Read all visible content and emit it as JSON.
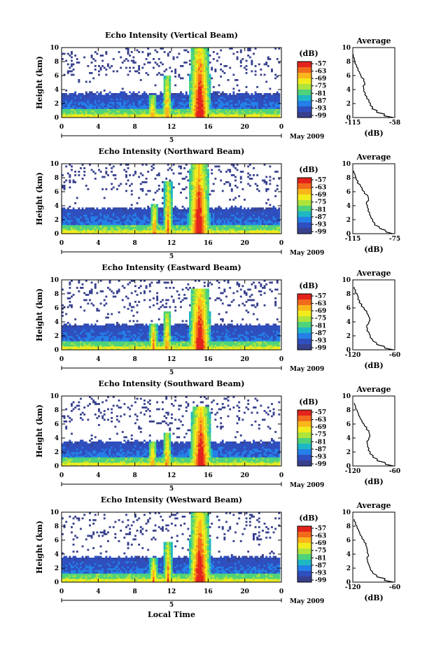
{
  "colorbar": {
    "unit": "(dB)",
    "labels": [
      "-57",
      "-63",
      "-69",
      "-75",
      "-81",
      "-87",
      "-93",
      "-99"
    ],
    "colors": [
      "#e3231c",
      "#f26a1c",
      "#fbb61b",
      "#f2ec1d",
      "#aee43c",
      "#4ed37b",
      "#1fb7c4",
      "#2480e8",
      "#2f4fbe",
      "#38418e"
    ]
  },
  "chart_data": [
    {
      "type": "heatmap",
      "title": "Echo Intensity (Vertical Beam)",
      "ylabel": "Height (km)",
      "yticks": [
        "0",
        "2",
        "4",
        "6",
        "8",
        "10"
      ],
      "xticks": [
        "0",
        "4",
        "8",
        "12",
        "16",
        "20",
        "0"
      ],
      "date_label": "5",
      "month_label": "May 2009",
      "xlim": [
        0,
        24
      ],
      "ylim": [
        0,
        10
      ],
      "echo_top_km": 3.5,
      "convective_cells": [
        {
          "center_h": 10,
          "peak_height_km": 3.2
        },
        {
          "center_h": 11.6,
          "peak_height_km": 6.0
        },
        {
          "center_h": 15.2,
          "peak_height_km": 10.0
        }
      ],
      "profile": {
        "title": "Average",
        "xlabel": "(dB)",
        "xtick_labels": [
          "-115",
          "-58"
        ],
        "xlim": [
          -115,
          -58
        ],
        "yticks": [
          "0",
          "2",
          "4",
          "6",
          "8",
          "10"
        ],
        "height_km": [
          0,
          0.5,
          1,
          1.5,
          2,
          2.5,
          3,
          3.5,
          4,
          4.5,
          5,
          5.5,
          6,
          6.5,
          7,
          7.5,
          8,
          8.5,
          9
        ],
        "value_db": [
          -60,
          -72,
          -82,
          -88,
          -91,
          -93,
          -96,
          -98,
          -100,
          -101,
          -99,
          -100,
          -104,
          -106,
          -108,
          -110,
          -112,
          -113,
          -114
        ]
      }
    },
    {
      "type": "heatmap",
      "title": "Echo Intensity (Northward Beam)",
      "ylabel": "Height (km)",
      "yticks": [
        "0",
        "2",
        "4",
        "6",
        "8",
        "10"
      ],
      "xticks": [
        "0",
        "4",
        "8",
        "12",
        "16",
        "20",
        "0"
      ],
      "date_label": "5",
      "month_label": "May 2009",
      "xlim": [
        0,
        24
      ],
      "ylim": [
        0,
        10
      ],
      "echo_top_km": 3.7,
      "convective_cells": [
        {
          "center_h": 10.2,
          "peak_height_km": 4.2
        },
        {
          "center_h": 11.7,
          "peak_height_km": 7.5
        },
        {
          "center_h": 15.1,
          "peak_height_km": 10.0
        }
      ],
      "profile": {
        "title": "Average",
        "xlabel": "(dB)",
        "xtick_labels": [
          "-115",
          "-75"
        ],
        "xlim": [
          -115,
          -75
        ],
        "yticks": [
          "0",
          "2",
          "4",
          "6",
          "8",
          "10"
        ],
        "height_km": [
          0,
          0.5,
          1,
          1.5,
          2,
          2.5,
          3,
          3.5,
          4,
          4.5,
          5,
          5.5,
          6,
          6.5,
          7,
          7.5,
          8,
          8.5,
          9
        ],
        "value_db": [
          -77,
          -84,
          -90,
          -94,
          -96,
          -98,
          -99,
          -100,
          -101,
          -102,
          -100,
          -101,
          -104,
          -106,
          -108,
          -110,
          -112,
          -113,
          -114
        ]
      }
    },
    {
      "type": "heatmap",
      "title": "Echo Intensity (Eastward Beam)",
      "ylabel": "Height (km)",
      "yticks": [
        "0",
        "2",
        "4",
        "6",
        "8",
        "10"
      ],
      "xticks": [
        "0",
        "4",
        "8",
        "12",
        "16",
        "20",
        "0"
      ],
      "date_label": "5",
      "month_label": "May 2009",
      "xlim": [
        0,
        24
      ],
      "ylim": [
        0,
        10
      ],
      "echo_top_km": 3.6,
      "convective_cells": [
        {
          "center_h": 10.1,
          "peak_height_km": 3.8
        },
        {
          "center_h": 11.6,
          "peak_height_km": 5.5
        },
        {
          "center_h": 15.2,
          "peak_height_km": 8.8
        }
      ],
      "profile": {
        "title": "Average",
        "xlabel": "(dB)",
        "xtick_labels": [
          "-120",
          "-60"
        ],
        "xlim": [
          -120,
          -60
        ],
        "yticks": [
          "0",
          "2",
          "4",
          "6",
          "8",
          "10"
        ],
        "height_km": [
          0,
          0.5,
          1,
          1.5,
          2,
          2.5,
          3,
          3.5,
          4,
          4.5,
          5,
          5.5,
          6,
          6.5,
          7,
          7.5,
          8,
          8.5,
          9
        ],
        "value_db": [
          -62,
          -75,
          -86,
          -92,
          -95,
          -97,
          -99,
          -100,
          -97,
          -96,
          -98,
          -100,
          -104,
          -107,
          -110,
          -112,
          -114,
          -116,
          -118
        ]
      }
    },
    {
      "type": "heatmap",
      "title": "Echo Intensity (Southward Beam)",
      "ylabel": "Height (km)",
      "yticks": [
        "0",
        "2",
        "4",
        "6",
        "8",
        "10"
      ],
      "xticks": [
        "0",
        "4",
        "8",
        "12",
        "16",
        "20",
        "0"
      ],
      "date_label": "5",
      "month_label": "May 2009",
      "xlim": [
        0,
        24
      ],
      "ylim": [
        0,
        10
      ],
      "echo_top_km": 3.5,
      "convective_cells": [
        {
          "center_h": 10.0,
          "peak_height_km": 3.6
        },
        {
          "center_h": 11.6,
          "peak_height_km": 4.8
        },
        {
          "center_h": 15.3,
          "peak_height_km": 8.5
        }
      ],
      "profile": {
        "title": "Average",
        "xlabel": "(dB)",
        "xtick_labels": [
          "-120",
          "-60"
        ],
        "xlim": [
          -120,
          -60
        ],
        "yticks": [
          "0",
          "2",
          "4",
          "6",
          "8",
          "10"
        ],
        "height_km": [
          0,
          0.5,
          1,
          1.5,
          2,
          2.5,
          3,
          3.5,
          4,
          4.5,
          5,
          5.5,
          6,
          6.5,
          7,
          7.5,
          8,
          8.5,
          9
        ],
        "value_db": [
          -62,
          -74,
          -85,
          -91,
          -95,
          -97,
          -99,
          -100,
          -97,
          -96,
          -97,
          -100,
          -104,
          -107,
          -110,
          -112,
          -114,
          -116,
          -118
        ]
      }
    },
    {
      "type": "heatmap",
      "title": "Echo Intensity (Westward Beam)",
      "ylabel": "Height (km)",
      "yticks": [
        "0",
        "2",
        "4",
        "6",
        "8",
        "10"
      ],
      "xticks": [
        "0",
        "4",
        "8",
        "12",
        "16",
        "20",
        "0"
      ],
      "date_label": "5",
      "month_label": "May 2009",
      "xlabel": "Local Time",
      "xlim": [
        0,
        24
      ],
      "ylim": [
        0,
        10
      ],
      "echo_top_km": 3.6,
      "convective_cells": [
        {
          "center_h": 10.1,
          "peak_height_km": 3.4
        },
        {
          "center_h": 11.7,
          "peak_height_km": 5.8
        },
        {
          "center_h": 15.2,
          "peak_height_km": 10.0
        }
      ],
      "profile": {
        "title": "Average",
        "xlabel": "(dB)",
        "xtick_labels": [
          "-120",
          "-60"
        ],
        "xlim": [
          -120,
          -60
        ],
        "yticks": [
          "0",
          "2",
          "4",
          "6",
          "8",
          "10"
        ],
        "height_km": [
          0,
          0.5,
          1,
          1.5,
          2,
          2.5,
          3,
          3.5,
          4,
          4.5,
          5,
          5.5,
          6,
          6.5,
          7,
          7.5,
          8,
          8.5,
          9
        ],
        "value_db": [
          -62,
          -74,
          -86,
          -92,
          -95,
          -97,
          -99,
          -100,
          -98,
          -99,
          -100,
          -101,
          -104,
          -107,
          -110,
          -112,
          -114,
          -116,
          -118
        ]
      }
    }
  ]
}
